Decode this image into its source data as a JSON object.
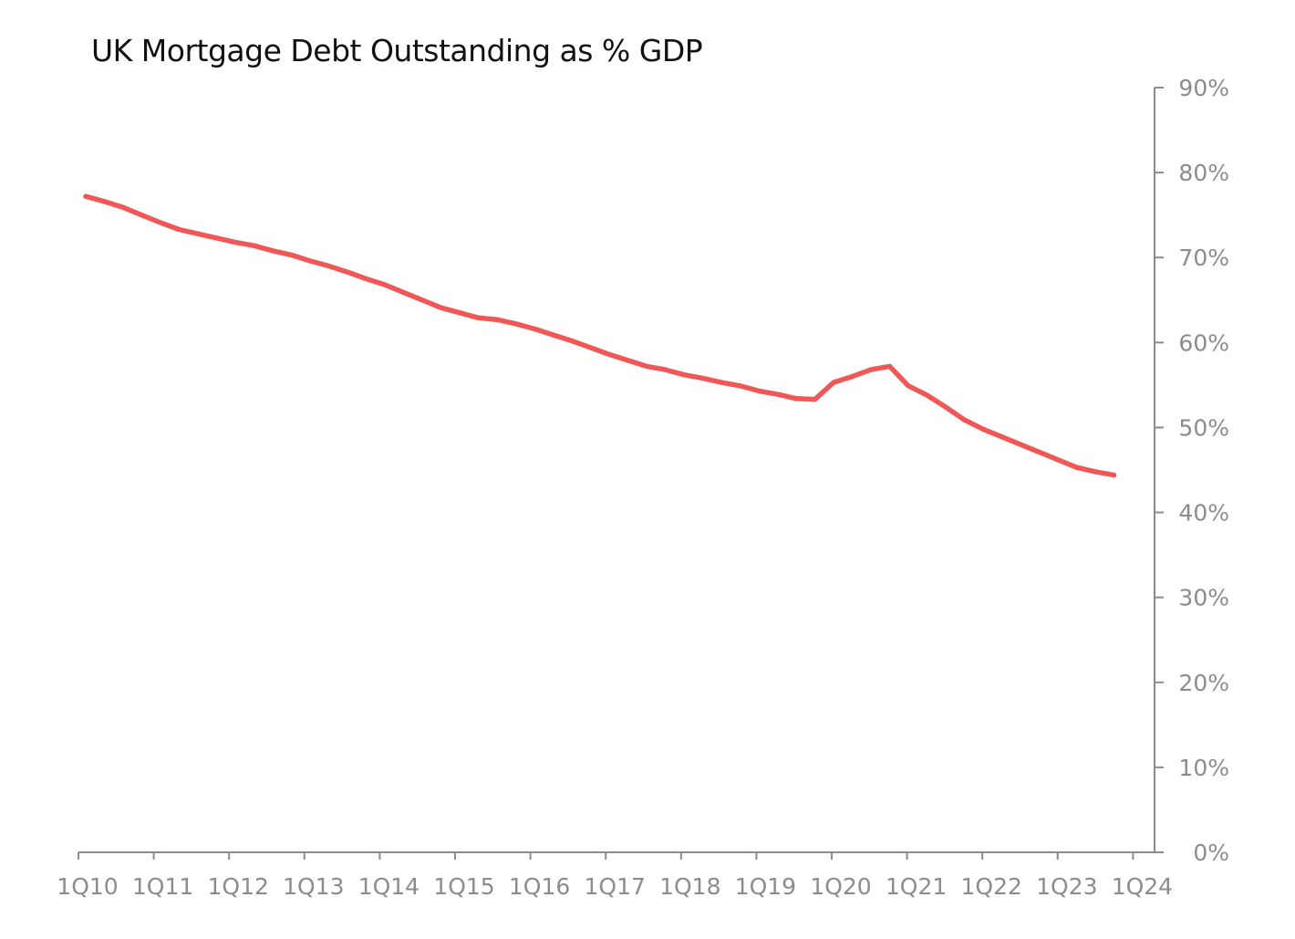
{
  "chart_data": {
    "type": "line",
    "title": "UK Mortgage Debt Outstanding as % GDP",
    "xlabel": "",
    "ylabel": "",
    "x_tick_labels": [
      "1Q10",
      "1Q11",
      "1Q12",
      "1Q13",
      "1Q14",
      "1Q15",
      "1Q16",
      "1Q17",
      "1Q18",
      "1Q19",
      "1Q20",
      "1Q21",
      "1Q22",
      "1Q23",
      "1Q24"
    ],
    "y_tick_labels": [
      "0%",
      "10%",
      "20%",
      "30%",
      "40%",
      "50%",
      "60%",
      "70%",
      "80%",
      "90%"
    ],
    "ylim": [
      0,
      90
    ],
    "y_axis_position": "right",
    "grid": false,
    "legend": "none",
    "colors": {
      "line": "#F05858",
      "axis": "#8C8C8C",
      "tick_text": "#8C8C8C",
      "title": "#111111"
    },
    "series": [
      {
        "values": [
          77.2,
          76.6,
          75.9,
          75.0,
          74.1,
          73.3,
          72.8,
          72.3,
          71.8,
          71.4,
          70.8,
          70.3,
          69.6,
          69.0,
          68.3,
          67.5,
          66.8,
          65.9,
          65.0,
          64.1,
          63.5,
          62.9,
          62.7,
          62.2,
          61.6,
          60.9,
          60.2,
          59.4,
          58.6,
          57.9,
          57.2,
          56.8,
          56.2,
          55.8,
          55.3,
          54.9,
          54.3,
          53.9,
          53.4,
          53.3,
          55.3,
          56.0,
          56.8,
          57.2,
          54.9,
          53.8,
          52.4,
          50.9,
          49.8,
          48.9,
          48.0,
          47.1,
          46.2,
          45.3,
          44.8,
          44.4
        ]
      }
    ]
  }
}
